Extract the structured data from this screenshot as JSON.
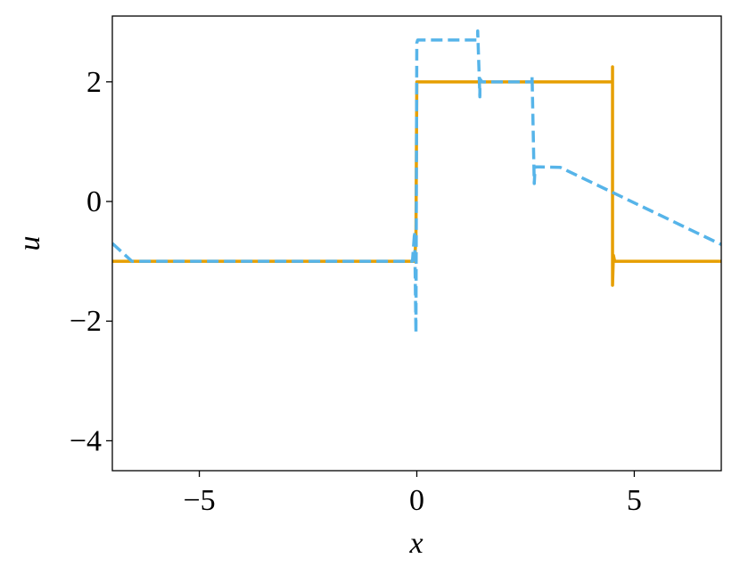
{
  "chart_data": {
    "type": "line",
    "xlabel": "x",
    "ylabel": "u",
    "xlim": [
      -7,
      7
    ],
    "ylim": [
      -4.5,
      3.1
    ],
    "xticks": [
      {
        "value": -5,
        "label": "−5"
      },
      0,
      5
    ],
    "yticks": [
      {
        "value": -4,
        "label": "−4"
      },
      {
        "value": -2,
        "label": "−2"
      },
      0,
      2
    ],
    "series": [
      {
        "color": "#E69F00",
        "dash": false,
        "x": [
          -7,
          -0.05,
          -0.02,
          0,
          0.02,
          4.5,
          4.5,
          4.5,
          4.52,
          4.55,
          7
        ],
        "values": [
          -1,
          -1,
          -0.6,
          2,
          2,
          2,
          2.25,
          -1.4,
          -0.9,
          -1,
          -1
        ]
      },
      {
        "color": "#56B4E9",
        "dash": true,
        "x": [
          -7,
          -6.55,
          -0.1,
          -0.05,
          -0.02,
          0,
          0.02,
          1.4,
          1.4,
          1.45,
          1.45,
          1.5,
          2.65,
          2.65,
          2.7,
          2.72,
          3.3,
          7
        ],
        "values": [
          -0.7,
          -1,
          -1,
          -0.5,
          -2.2,
          2.65,
          2.7,
          2.7,
          2.85,
          1.75,
          2.05,
          2,
          2,
          2.1,
          0.3,
          0.58,
          0.57,
          -0.72
        ]
      }
    ]
  }
}
